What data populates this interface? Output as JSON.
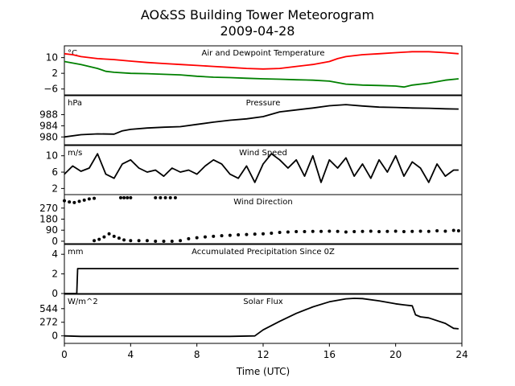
{
  "chart_data": {
    "type": "line",
    "title": "AO&SS Building Tower Meteorogram",
    "subtitle": "2009-04-28",
    "xlabel": "Time (UTC)",
    "x_ticks": [
      0,
      4,
      8,
      12,
      16,
      20,
      24
    ],
    "xlim": [
      0,
      24
    ],
    "grid": false,
    "panels": [
      {
        "title": "Air and Dewpoint Temperature",
        "unit": "°C",
        "ylim": [
          -9,
          16
        ],
        "yticks": [
          10,
          2,
          -6
        ],
        "series": [
          {
            "color": "#ff0000",
            "style": "line",
            "x": [
              0,
              0.5,
              1,
              1.5,
              2,
              3,
              4,
              5,
              6,
              7,
              8,
              9,
              10,
              11,
              12,
              13,
              14,
              15,
              16,
              16.5,
              17,
              18,
              19,
              20,
              21,
              22,
              23,
              23.8
            ],
            "y": [
              12,
              11.5,
              10.5,
              10,
              9.5,
              9,
              8.2,
              7.5,
              7,
              6.5,
              6,
              5.5,
              5,
              4.5,
              4.2,
              4.5,
              5.5,
              6.5,
              8,
              9.5,
              10.5,
              11.5,
              12,
              12.5,
              13,
              13,
              12.5,
              12
            ]
          },
          {
            "color": "#008000",
            "style": "line",
            "x": [
              0,
              1,
              2,
              2.5,
              3,
              4,
              5,
              6,
              7,
              8,
              9,
              10,
              11,
              12,
              13,
              14,
              15,
              16,
              17,
              18,
              19,
              20,
              20.5,
              21,
              22,
              23,
              23.8
            ],
            "y": [
              8,
              6.5,
              4.5,
              3,
              2.5,
              2,
              1.8,
              1.5,
              1.2,
              0.5,
              0,
              -0.2,
              -0.5,
              -0.8,
              -1,
              -1.3,
              -1.5,
              -2,
              -3.5,
              -4,
              -4.2,
              -4.5,
              -5,
              -4,
              -3,
              -1.5,
              -0.8
            ]
          }
        ]
      },
      {
        "title": "Pressure",
        "unit": "hPa",
        "ylim": [
          977.2,
          994.8
        ],
        "yticks": [
          988,
          984,
          980
        ],
        "series": [
          {
            "color": "#000000",
            "style": "line",
            "x": [
              0,
              1,
              2,
              3,
              3.5,
              4,
              5,
              6,
              7,
              8,
              9,
              10,
              11,
              12,
              13,
              14,
              15,
              16,
              17,
              18,
              19,
              20,
              21,
              22,
              23,
              23.8
            ],
            "y": [
              980,
              980.8,
              981.1,
              981,
              982.2,
              982.7,
              983.2,
              983.5,
              983.7,
              984.5,
              985.3,
              986,
              986.5,
              987.3,
              989,
              989.7,
              990.4,
              991.2,
              991.6,
              991.1,
              990.7,
              990.6,
              990.4,
              990.3,
              990.1,
              990
            ]
          }
        ]
      },
      {
        "title": "Wind Speed",
        "unit": "m/s",
        "ylim": [
          0.5,
          12.5
        ],
        "yticks": [
          10,
          6,
          2
        ],
        "series": [
          {
            "color": "#000000",
            "style": "line",
            "x": [
              0,
              0.5,
              1,
              1.5,
              2,
              2.5,
              3,
              3.5,
              4,
              4.5,
              5,
              5.5,
              6,
              6.5,
              7,
              7.5,
              8,
              8.5,
              9,
              9.5,
              10,
              10.5,
              11,
              11.5,
              12,
              12.5,
              13,
              13.5,
              14,
              14.5,
              15,
              15.5,
              16,
              16.5,
              17,
              17.5,
              18,
              18.5,
              19,
              19.5,
              20,
              20.5,
              21,
              21.5,
              22,
              22.5,
              23,
              23.5,
              23.8
            ],
            "y": [
              5.5,
              7.5,
              6.2,
              7,
              10.5,
              5.5,
              4.5,
              8,
              9,
              7,
              6,
              6.5,
              5,
              7,
              6,
              6.5,
              5.5,
              7.5,
              9,
              8,
              5.5,
              4.5,
              7.5,
              3.5,
              8,
              10.5,
              9,
              7,
              9,
              5,
              10,
              3.5,
              9,
              7,
              9.5,
              5,
              8,
              4.5,
              9,
              6,
              10,
              5,
              8.5,
              7,
              3.5,
              8,
              5,
              6.5,
              6.5
            ]
          }
        ]
      },
      {
        "title": "Wind Direction",
        "unit": "",
        "ylim": [
          -20,
          380
        ],
        "yticks": [
          270,
          180,
          90,
          0
        ],
        "series": [
          {
            "color": "#000000",
            "style": "dots",
            "x": [
              0,
              0.3,
              0.6,
              0.9,
              1.2,
              1.5,
              1.8,
              3.4,
              3.6,
              3.8,
              4.0,
              5.5,
              5.8,
              6.1,
              6.4,
              6.7,
              1.8,
              2.1,
              2.4,
              2.7,
              3.0,
              3.3,
              3.6,
              4.0,
              4.5,
              5.0,
              5.5,
              6.0,
              6.5,
              7.0,
              7.5,
              8.0,
              8.5,
              9.0,
              9.5,
              10.0,
              10.5,
              11.0,
              11.5,
              12.0,
              12.5,
              13.0,
              13.5,
              14.0,
              14.5,
              15.0,
              15.5,
              16.0,
              16.5,
              17.0,
              17.5,
              18.0,
              18.5,
              19.0,
              19.5,
              20.0,
              20.5,
              21.0,
              21.5,
              22.0,
              22.5,
              23.0,
              23.5,
              23.8
            ],
            "y": [
              330,
              320,
              315,
              325,
              335,
              345,
              350,
              355,
              355,
              355,
              355,
              355,
              355,
              355,
              355,
              355,
              5,
              15,
              35,
              60,
              40,
              25,
              10,
              5,
              5,
              5,
              0,
              0,
              0,
              5,
              20,
              28,
              35,
              40,
              45,
              48,
              52,
              55,
              58,
              60,
              65,
              72,
              75,
              78,
              78,
              80,
              80,
              82,
              80,
              75,
              78,
              80,
              82,
              78,
              80,
              82,
              78,
              80,
              82,
              80,
              85,
              82,
              88,
              85
            ]
          }
        ]
      },
      {
        "title": "Accumulated Precipitation Since 0Z",
        "unit": "mm",
        "ylim": [
          0,
          5
        ],
        "yticks": [
          4,
          2,
          0
        ],
        "series": [
          {
            "color": "#000000",
            "style": "line",
            "x": [
              0,
              0.75,
              0.8,
              23.8
            ],
            "y": [
              0,
              0,
              2.54,
              2.54
            ]
          }
        ]
      },
      {
        "title": "Solar Flux",
        "unit": "W/m^2",
        "ylim": [
          -150,
          830
        ],
        "yticks": [
          544,
          272,
          0
        ],
        "series": [
          {
            "color": "#000000",
            "style": "line",
            "x": [
              0,
              1,
              2,
              6,
              10,
              11.5,
              12,
              13,
              14,
              15,
              16,
              17,
              17.5,
              18,
              19,
              20,
              20.5,
              21,
              21.2,
              21.5,
              22,
              23,
              23.5,
              23.8
            ],
            "y": [
              0,
              -10,
              -10,
              -10,
              -10,
              0,
              120,
              290,
              450,
              580,
              680,
              740,
              750,
              745,
              700,
              640,
              620,
              600,
              420,
              380,
              360,
              250,
              150,
              140
            ]
          }
        ]
      }
    ]
  }
}
